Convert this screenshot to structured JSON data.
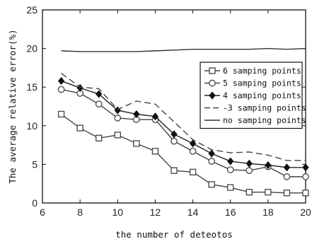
{
  "chart_data": {
    "type": "line",
    "xlabel": "the number of deteotos",
    "ylabel": "The average relative error(%)",
    "xlim": [
      6,
      20
    ],
    "ylim": [
      0,
      25
    ],
    "xticks": [
      6,
      8,
      10,
      12,
      14,
      16,
      18,
      20
    ],
    "yticks": [
      0,
      5,
      10,
      15,
      20,
      25
    ],
    "grid": false,
    "legend_position": "center-right",
    "x": [
      7,
      8,
      9,
      10,
      11,
      12,
      13,
      14,
      15,
      16,
      17,
      18,
      19,
      20
    ],
    "series": [
      {
        "name": "6 samping points",
        "marker": "square",
        "dash": "solid",
        "color": "#444444",
        "values": [
          11.5,
          9.7,
          8.4,
          8.8,
          7.7,
          6.7,
          4.2,
          4.0,
          2.4,
          2.0,
          1.4,
          1.4,
          1.3,
          1.3
        ]
      },
      {
        "name": "5 samping points",
        "marker": "circle",
        "dash": "solid",
        "color": "#444444",
        "values": [
          14.7,
          14.2,
          12.8,
          11.0,
          10.8,
          10.8,
          8.0,
          6.7,
          5.4,
          4.3,
          4.2,
          4.7,
          3.4,
          3.4
        ]
      },
      {
        "name": "4 samping points",
        "marker": "diamond",
        "dash": "solid",
        "color": "#222222",
        "values": [
          15.8,
          14.9,
          14.1,
          12.0,
          11.5,
          11.2,
          8.9,
          7.7,
          6.4,
          5.4,
          5.1,
          4.9,
          4.6,
          4.6
        ]
      },
      {
        "name": "-3 samping points",
        "marker": "none",
        "dash": "dashed",
        "color": "#444444",
        "values": [
          16.8,
          15.0,
          14.8,
          12.1,
          13.2,
          12.8,
          10.5,
          8.2,
          6.9,
          6.5,
          6.6,
          6.2,
          5.5,
          5.5
        ]
      },
      {
        "name": "no samping points",
        "marker": "none",
        "dash": "solid",
        "color": "#333333",
        "values": [
          19.7,
          19.6,
          19.6,
          19.6,
          19.6,
          19.7,
          19.8,
          19.9,
          19.9,
          19.9,
          19.9,
          20.0,
          19.9,
          20.0
        ]
      }
    ]
  }
}
